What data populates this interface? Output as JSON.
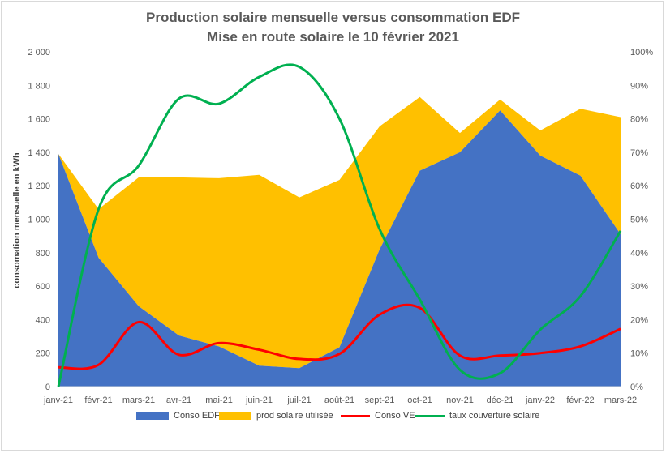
{
  "chart_data": {
    "type": "area",
    "title": "Production solaire mensuelle versus consommation EDF",
    "subtitle": "Mise en route solaire le 10 février 2021",
    "ylabel": "consomation  mensuelle en kWh",
    "ylim": [
      0,
      2000
    ],
    "y2lim": [
      0,
      1
    ],
    "grid": false,
    "legend_position": "bottom",
    "categories": [
      "janv-21",
      "févr-21",
      "mars-21",
      "avr-21",
      "mai-21",
      "juin-21",
      "juil-21",
      "août-21",
      "sept-21",
      "oct-21",
      "nov-21",
      "déc-21",
      "janv-22",
      "févr-22",
      "mars-22"
    ],
    "y_ticks": [
      "0",
      "200",
      "400",
      "600",
      "800",
      "1 000",
      "1 200",
      "1 400",
      "1 600",
      "1 800",
      "2 000"
    ],
    "y2_ticks": [
      "0%",
      "10%",
      "20%",
      "30%",
      "40%",
      "50%",
      "60%",
      "70%",
      "80%",
      "90%",
      "100%"
    ],
    "series": [
      {
        "name": "Conso EDF",
        "kind": "area",
        "axis": "left",
        "color": "#4472C4",
        "values": [
          1390,
          770,
          480,
          305,
          240,
          125,
          110,
          235,
          820,
          1290,
          1400,
          1650,
          1380,
          1260,
          910
        ]
      },
      {
        "name": "prod solaire utilisée",
        "kind": "area",
        "axis": "left",
        "color": "#FFC000",
        "values": [
          0,
          290,
          770,
          945,
          1005,
          1140,
          1020,
          1000,
          735,
          440,
          115,
          65,
          150,
          400,
          700
        ]
      },
      {
        "name": "Conso VE",
        "kind": "line",
        "axis": "left",
        "color": "#FF0000",
        "values": [
          115,
          130,
          385,
          190,
          260,
          220,
          165,
          195,
          430,
          470,
          185,
          185,
          200,
          240,
          345
        ]
      },
      {
        "name": "taux couverture solaire",
        "kind": "line",
        "axis": "right",
        "color": "#00B050",
        "values": [
          0.0,
          0.53,
          0.66,
          0.86,
          0.845,
          0.925,
          0.955,
          0.8,
          0.47,
          0.26,
          0.05,
          0.04,
          0.17,
          0.27,
          0.465
        ]
      }
    ]
  }
}
